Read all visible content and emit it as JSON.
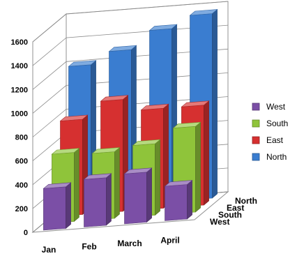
{
  "chart_data": {
    "type": "bar",
    "subtype": "3d-column",
    "title": "",
    "xlabel": "",
    "ylabel": "",
    "categories": [
      "Jan",
      "Feb",
      "March",
      "April"
    ],
    "ylim": [
      0,
      1600
    ],
    "yticks": [
      0,
      200,
      400,
      600,
      800,
      1000,
      1200,
      1400,
      1600
    ],
    "grid": true,
    "legend_position": "right",
    "series": [
      {
        "name": "West",
        "color": "#7B4FA6",
        "values": [
          350,
          400,
          420,
          290
        ]
      },
      {
        "name": "South",
        "color": "#8FC43A",
        "values": [
          580,
          560,
          600,
          720
        ]
      },
      {
        "name": "East",
        "color": "#D63030",
        "values": [
          800,
          940,
          840,
          840
        ]
      },
      {
        "name": "North",
        "color": "#3A7DD0",
        "values": [
          1200,
          1300,
          1450,
          1550
        ]
      }
    ],
    "depth_axis_labels": [
      "West",
      "South",
      "East",
      "North"
    ]
  }
}
